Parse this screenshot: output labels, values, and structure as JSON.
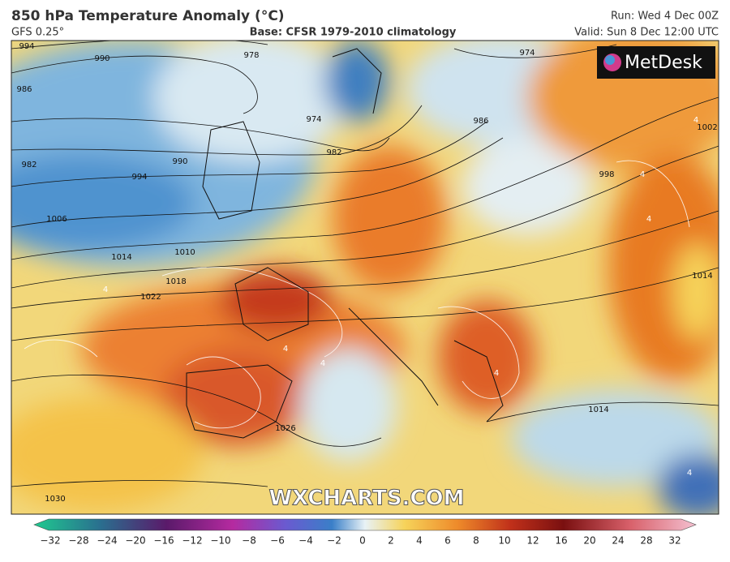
{
  "header": {
    "title": "850 hPa Temperature Anomaly (°C)",
    "model": "GFS 0.25°",
    "base": "Base: CFSR 1979-2010 climatology",
    "run": "Run: Wed 4 Dec 00Z",
    "valid": "Valid: Sun 8 Dec 12:00 UTC"
  },
  "logo": "MetDesk",
  "watermark": "WXCHARTS.COM",
  "isobar_labels": [
    "994",
    "990",
    "978",
    "986",
    "974",
    "982",
    "982",
    "990",
    "994",
    "1006",
    "1014",
    "1010",
    "1018",
    "1022",
    "1026",
    "1030",
    "998",
    "1002",
    "1014",
    "1014",
    "974",
    "986"
  ],
  "anomaly_labels": [
    "4",
    "4",
    "4",
    "4",
    "4",
    "4",
    "4",
    "4"
  ],
  "colorbar": {
    "ticks": [
      "−32",
      "−28",
      "−24",
      "−20",
      "−16",
      "−12",
      "−10",
      "−8",
      "−6",
      "−4",
      "−2",
      "0",
      "2",
      "4",
      "6",
      "8",
      "10",
      "12",
      "16",
      "20",
      "24",
      "28",
      "32"
    ]
  }
}
